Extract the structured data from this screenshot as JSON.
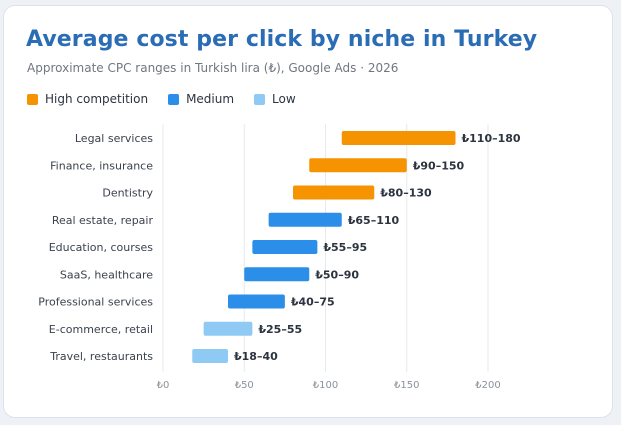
{
  "header": {
    "title": "Average cost per click by niche in Turkey",
    "subtitle": "Approximate CPC ranges in Turkish lira (₺), Google Ads · 2026"
  },
  "legend": [
    {
      "label": "High competition",
      "color": "#f59300"
    },
    {
      "label": "Medium",
      "color": "#2b8ee8"
    },
    {
      "label": "Low",
      "color": "#8fcaf5"
    }
  ],
  "chart_data": {
    "type": "bar",
    "orientation": "horizontal-range",
    "title": "Average cost per click by niche in Turkey",
    "subtitle": "Approximate CPC ranges in Turkish lira (₺), Google Ads · 2026",
    "xlabel": "",
    "ylabel": "",
    "xlim": [
      0,
      200
    ],
    "xticks": [
      "₺0",
      "₺50",
      "₺100",
      "₺150",
      "₺200"
    ],
    "xtick_values": [
      0,
      50,
      100,
      150,
      200
    ],
    "grid": true,
    "legend_position": "top-left",
    "categories": [
      "Legal services",
      "Finance, insurance",
      "Dentistry",
      "Real estate, repair",
      "Education, courses",
      "SaaS, healthcare",
      "Professional services",
      "E-commerce, retail",
      "Travel, restaurants"
    ],
    "ranges": [
      {
        "low": 110,
        "high": 180,
        "label": "₺110–180",
        "competition": "High competition"
      },
      {
        "low": 90,
        "high": 150,
        "label": "₺90–150",
        "competition": "High competition"
      },
      {
        "low": 80,
        "high": 130,
        "label": "₺80–130",
        "competition": "High competition"
      },
      {
        "low": 65,
        "high": 110,
        "label": "₺65–110",
        "competition": "Medium"
      },
      {
        "low": 55,
        "high": 95,
        "label": "₺55–95",
        "competition": "Medium"
      },
      {
        "low": 50,
        "high": 90,
        "label": "₺50–90",
        "competition": "Medium"
      },
      {
        "low": 40,
        "high": 75,
        "label": "₺40–75",
        "competition": "Medium"
      },
      {
        "low": 25,
        "high": 55,
        "label": "₺25–55",
        "competition": "Low"
      },
      {
        "low": 18,
        "high": 40,
        "label": "₺18–40",
        "competition": "Low"
      }
    ]
  }
}
